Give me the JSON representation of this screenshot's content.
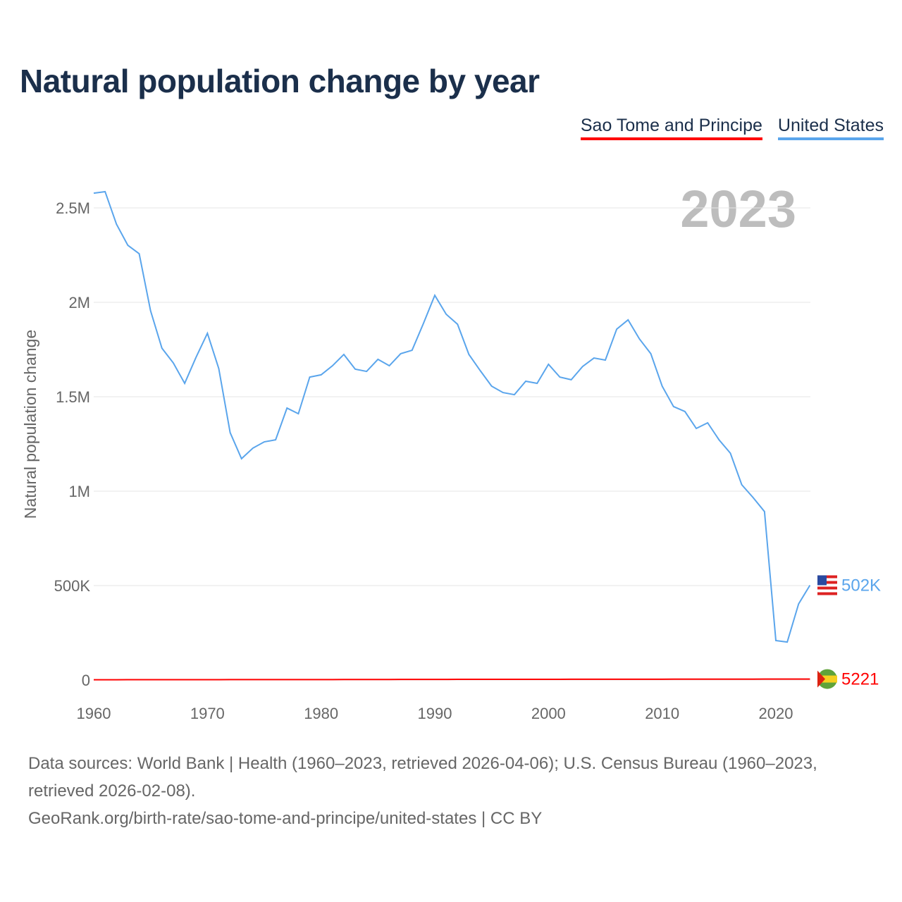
{
  "title": "Natural population change by year",
  "legend": [
    {
      "label": "Sao Tome and Principe",
      "color": "#ff0000"
    },
    {
      "label": "United States",
      "color": "#5aa5ec"
    }
  ],
  "year_watermark": "2023",
  "source_line1": "Data sources: World Bank | Health (1960–2023, retrieved 2026-04-06); U.S. Census Bureau (1960–2023, retrieved 2026-02-08).",
  "source_line2": "GeoRank.org/birth-rate/sao-tome-and-principe/united-states | CC BY",
  "chart_data": {
    "type": "line",
    "title": "Natural population change by year",
    "xlabel": "",
    "ylabel": "Natural population change",
    "xlim": [
      1960,
      2023
    ],
    "ylim": [
      0,
      2700000
    ],
    "x_ticks": [
      1960,
      1970,
      1980,
      1990,
      2000,
      2010,
      2020
    ],
    "y_ticks": [
      {
        "v": 0,
        "label": "0"
      },
      {
        "v": 500000,
        "label": "500K"
      },
      {
        "v": 1000000,
        "label": "1M"
      },
      {
        "v": 1500000,
        "label": "1.5M"
      },
      {
        "v": 2000000,
        "label": "2M"
      },
      {
        "v": 2500000,
        "label": "2.5M"
      }
    ],
    "grid": true,
    "legend_position": "top-right",
    "x_start": 1960,
    "series": [
      {
        "name": "United States",
        "color": "#5aa5ec",
        "end_label": "502K",
        "values": [
          2578000,
          2586000,
          2414000,
          2302000,
          2257000,
          1955000,
          1757000,
          1679000,
          1571000,
          1709000,
          1836000,
          1649000,
          1310000,
          1172000,
          1228000,
          1261000,
          1272000,
          1440000,
          1410000,
          1604000,
          1616000,
          1664000,
          1724000,
          1646000,
          1634000,
          1698000,
          1664000,
          1728000,
          1746000,
          1888000,
          2037000,
          1937000,
          1884000,
          1724000,
          1638000,
          1556000,
          1522000,
          1511000,
          1582000,
          1571000,
          1672000,
          1604000,
          1590000,
          1660000,
          1705000,
          1694000,
          1858000,
          1907000,
          1806000,
          1728000,
          1556000,
          1448000,
          1422000,
          1332000,
          1362000,
          1272000,
          1201000,
          1034000,
          966000,
          892000,
          209000,
          201000,
          403000,
          502000
        ]
      },
      {
        "name": "Sao Tome and Principe",
        "color": "#ff0000",
        "end_label": "5221",
        "values": [
          1500,
          1550,
          1600,
          1650,
          1700,
          1750,
          1800,
          1850,
          1900,
          1950,
          2000,
          2050,
          2100,
          2150,
          2200,
          2250,
          2300,
          2350,
          2400,
          2450,
          2500,
          2550,
          2600,
          2700,
          2800,
          2900,
          3000,
          3100,
          3200,
          3300,
          3400,
          3450,
          3500,
          3550,
          3600,
          3650,
          3700,
          3750,
          3800,
          3850,
          3900,
          3950,
          4000,
          4050,
          4100,
          4150,
          4200,
          4250,
          4300,
          4350,
          4400,
          4450,
          4500,
          4550,
          4600,
          4650,
          4700,
          4750,
          4800,
          4900,
          5000,
          5050,
          5150,
          5221
        ]
      }
    ]
  }
}
